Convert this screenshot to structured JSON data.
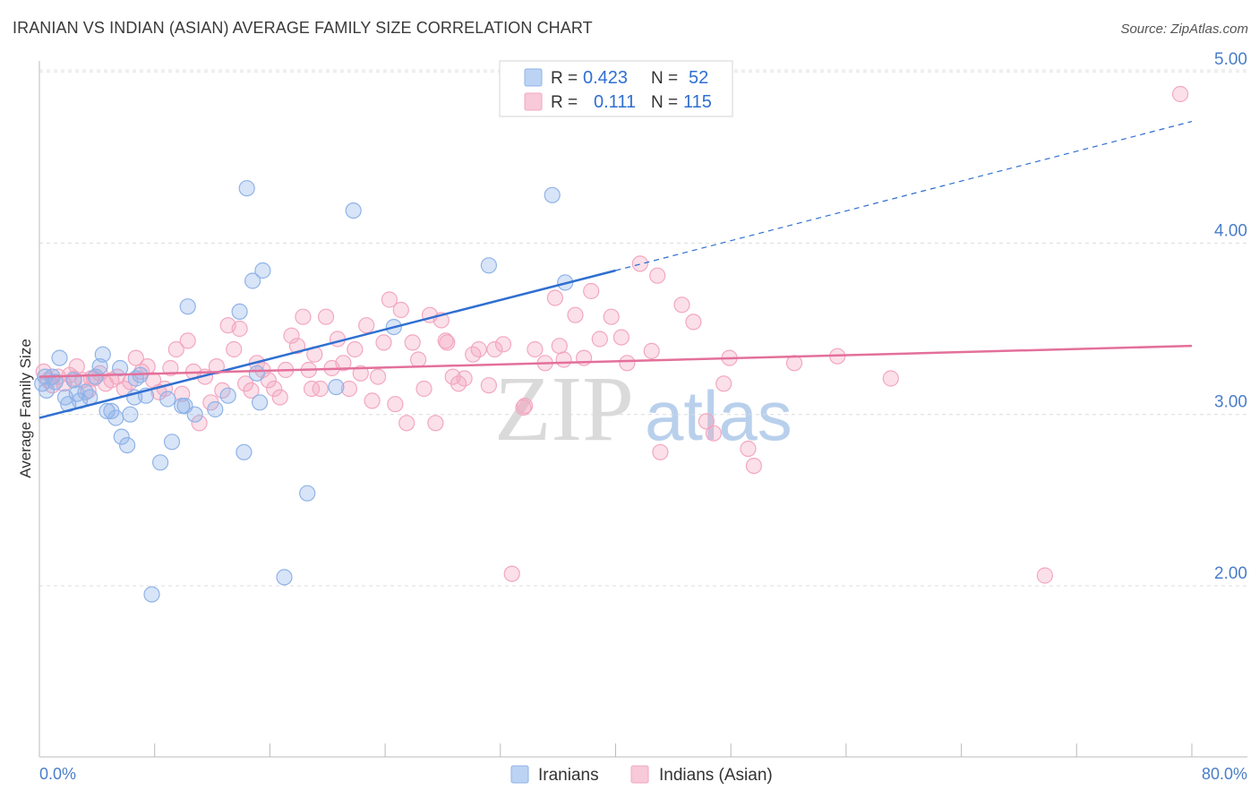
{
  "title": "IRANIAN VS INDIAN (ASIAN) AVERAGE FAMILY SIZE CORRELATION CHART",
  "source": "Source: ZipAtlas.com",
  "watermark": {
    "part1": "ZIP",
    "part2": "atlas"
  },
  "chart_data": {
    "type": "scatter",
    "title": "IRANIAN VS INDIAN (ASIAN) AVERAGE FAMILY SIZE CORRELATION CHART",
    "xlabel": "",
    "ylabel": "Average Family Size",
    "xlim": [
      0,
      80
    ],
    "ylim": [
      1.0,
      5.2
    ],
    "x_tick_labels": {
      "min": "0.0%",
      "max": "80.0%"
    },
    "y_ticks": [
      {
        "value": 2.0,
        "label": "2.00"
      },
      {
        "value": 3.0,
        "label": "3.00"
      },
      {
        "value": 4.0,
        "label": "4.00"
      },
      {
        "value": 5.0,
        "label": "5.00"
      }
    ],
    "grid": true,
    "legend_position": "bottom",
    "stats_box": [
      {
        "r_label": "R =",
        "r": "0.423",
        "n_label": "N =",
        "n": "52"
      },
      {
        "r_label": "R =",
        "r": "0.111",
        "n_label": "N =",
        "n": "115"
      }
    ],
    "series": [
      {
        "name": "Iranians",
        "color": "#8fb3e8",
        "line_color": "#2f6fd1",
        "trend": {
          "x0": 0,
          "y0": 2.98,
          "x1": 40,
          "y1": 3.84,
          "dash_to_x": 80,
          "dash_to_y": 4.71
        },
        "points": [
          [
            0.2,
            3.18
          ],
          [
            0.5,
            3.14
          ],
          [
            0.9,
            3.22
          ],
          [
            1.4,
            3.33
          ],
          [
            1.8,
            3.1
          ],
          [
            2.0,
            3.06
          ],
          [
            2.4,
            3.2
          ],
          [
            2.8,
            3.08
          ],
          [
            3.2,
            3.13
          ],
          [
            3.5,
            3.1
          ],
          [
            3.9,
            3.22
          ],
          [
            4.2,
            3.28
          ],
          [
            4.4,
            3.35
          ],
          [
            4.7,
            3.02
          ],
          [
            5.0,
            3.02
          ],
          [
            5.3,
            2.98
          ],
          [
            5.6,
            3.27
          ],
          [
            5.7,
            2.87
          ],
          [
            6.1,
            2.82
          ],
          [
            6.6,
            3.1
          ],
          [
            6.7,
            3.21
          ],
          [
            7.0,
            3.23
          ],
          [
            7.4,
            3.11
          ],
          [
            7.8,
            1.95
          ],
          [
            8.4,
            2.72
          ],
          [
            8.9,
            3.09
          ],
          [
            9.2,
            2.84
          ],
          [
            9.9,
            3.05
          ],
          [
            10.1,
            3.05
          ],
          [
            10.3,
            3.63
          ],
          [
            10.8,
            3.0
          ],
          [
            12.2,
            3.03
          ],
          [
            13.1,
            3.11
          ],
          [
            13.9,
            3.6
          ],
          [
            14.2,
            2.78
          ],
          [
            14.4,
            4.32
          ],
          [
            14.8,
            3.78
          ],
          [
            15.1,
            3.24
          ],
          [
            15.3,
            3.07
          ],
          [
            15.5,
            3.84
          ],
          [
            17.0,
            2.05
          ],
          [
            18.6,
            2.54
          ],
          [
            20.6,
            3.16
          ],
          [
            21.8,
            4.19
          ],
          [
            24.6,
            3.51
          ],
          [
            31.2,
            3.87
          ],
          [
            35.6,
            4.28
          ],
          [
            36.5,
            3.77
          ],
          [
            0.4,
            3.22
          ],
          [
            1.1,
            3.19
          ],
          [
            2.6,
            3.12
          ],
          [
            6.3,
            3.0
          ]
        ]
      },
      {
        "name": "Indians (Asian)",
        "color": "#f3a7c0",
        "line_color": "#e3709a",
        "trend": {
          "x0": 0,
          "y0": 3.22,
          "x1": 80,
          "y1": 3.4
        },
        "points": [
          [
            0.3,
            3.25
          ],
          [
            0.6,
            3.2
          ],
          [
            0.9,
            3.17
          ],
          [
            1.3,
            3.22
          ],
          [
            1.7,
            3.18
          ],
          [
            2.1,
            3.23
          ],
          [
            2.6,
            3.28
          ],
          [
            3.0,
            3.2
          ],
          [
            3.4,
            3.14
          ],
          [
            3.8,
            3.21
          ],
          [
            4.2,
            3.24
          ],
          [
            4.6,
            3.18
          ],
          [
            5.0,
            3.2
          ],
          [
            5.4,
            3.22
          ],
          [
            5.9,
            3.15
          ],
          [
            6.3,
            3.19
          ],
          [
            6.7,
            3.33
          ],
          [
            7.1,
            3.25
          ],
          [
            7.5,
            3.28
          ],
          [
            7.9,
            3.2
          ],
          [
            8.3,
            3.13
          ],
          [
            8.7,
            3.15
          ],
          [
            9.1,
            3.27
          ],
          [
            9.5,
            3.38
          ],
          [
            9.9,
            3.12
          ],
          [
            10.3,
            3.43
          ],
          [
            10.7,
            3.25
          ],
          [
            11.1,
            2.95
          ],
          [
            11.5,
            3.22
          ],
          [
            11.9,
            3.07
          ],
          [
            12.3,
            3.28
          ],
          [
            12.7,
            3.14
          ],
          [
            13.1,
            3.52
          ],
          [
            13.5,
            3.38
          ],
          [
            13.9,
            3.5
          ],
          [
            14.3,
            3.18
          ],
          [
            14.7,
            3.14
          ],
          [
            15.1,
            3.3
          ],
          [
            15.5,
            3.26
          ],
          [
            15.9,
            3.2
          ],
          [
            16.3,
            3.15
          ],
          [
            16.7,
            3.1
          ],
          [
            17.1,
            3.26
          ],
          [
            17.5,
            3.46
          ],
          [
            17.9,
            3.4
          ],
          [
            18.3,
            3.57
          ],
          [
            18.7,
            3.26
          ],
          [
            19.1,
            3.35
          ],
          [
            19.5,
            3.15
          ],
          [
            19.9,
            3.57
          ],
          [
            20.3,
            3.27
          ],
          [
            20.7,
            3.44
          ],
          [
            21.1,
            3.3
          ],
          [
            21.5,
            3.15
          ],
          [
            21.9,
            3.38
          ],
          [
            22.3,
            3.24
          ],
          [
            22.7,
            3.52
          ],
          [
            23.1,
            3.08
          ],
          [
            23.5,
            3.22
          ],
          [
            23.9,
            3.42
          ],
          [
            24.3,
            3.67
          ],
          [
            24.7,
            3.06
          ],
          [
            25.1,
            3.61
          ],
          [
            25.5,
            2.95
          ],
          [
            25.9,
            3.42
          ],
          [
            26.3,
            3.32
          ],
          [
            26.7,
            3.15
          ],
          [
            27.1,
            3.58
          ],
          [
            27.5,
            2.95
          ],
          [
            27.9,
            3.55
          ],
          [
            28.3,
            3.42
          ],
          [
            28.7,
            3.22
          ],
          [
            29.1,
            3.18
          ],
          [
            29.5,
            3.21
          ],
          [
            30.1,
            3.35
          ],
          [
            30.5,
            3.38
          ],
          [
            31.2,
            3.17
          ],
          [
            31.6,
            3.38
          ],
          [
            32.2,
            3.41
          ],
          [
            32.8,
            2.07
          ],
          [
            33.6,
            3.04
          ],
          [
            34.4,
            3.38
          ],
          [
            35.1,
            3.3
          ],
          [
            35.8,
            3.68
          ],
          [
            36.4,
            3.32
          ],
          [
            37.2,
            3.58
          ],
          [
            37.8,
            3.33
          ],
          [
            38.3,
            3.72
          ],
          [
            38.9,
            3.44
          ],
          [
            39.7,
            3.57
          ],
          [
            40.4,
            3.45
          ],
          [
            40.8,
            3.3
          ],
          [
            41.7,
            3.88
          ],
          [
            42.5,
            3.37
          ],
          [
            43.1,
            2.78
          ],
          [
            44.6,
            3.64
          ],
          [
            45.4,
            3.54
          ],
          [
            46.3,
            2.96
          ],
          [
            46.8,
            2.89
          ],
          [
            47.5,
            3.18
          ],
          [
            47.9,
            3.33
          ],
          [
            49.2,
            2.8
          ],
          [
            49.6,
            2.7
          ],
          [
            52.4,
            3.3
          ],
          [
            55.4,
            3.34
          ],
          [
            59.1,
            3.21
          ],
          [
            69.8,
            2.06
          ],
          [
            79.2,
            4.87
          ],
          [
            42.9,
            3.81
          ],
          [
            36.1,
            3.4
          ],
          [
            28.2,
            3.43
          ],
          [
            33.7,
            3.05
          ],
          [
            3.6,
            3.21
          ],
          [
            2.4,
            3.21
          ],
          [
            18.9,
            3.15
          ]
        ]
      }
    ]
  }
}
